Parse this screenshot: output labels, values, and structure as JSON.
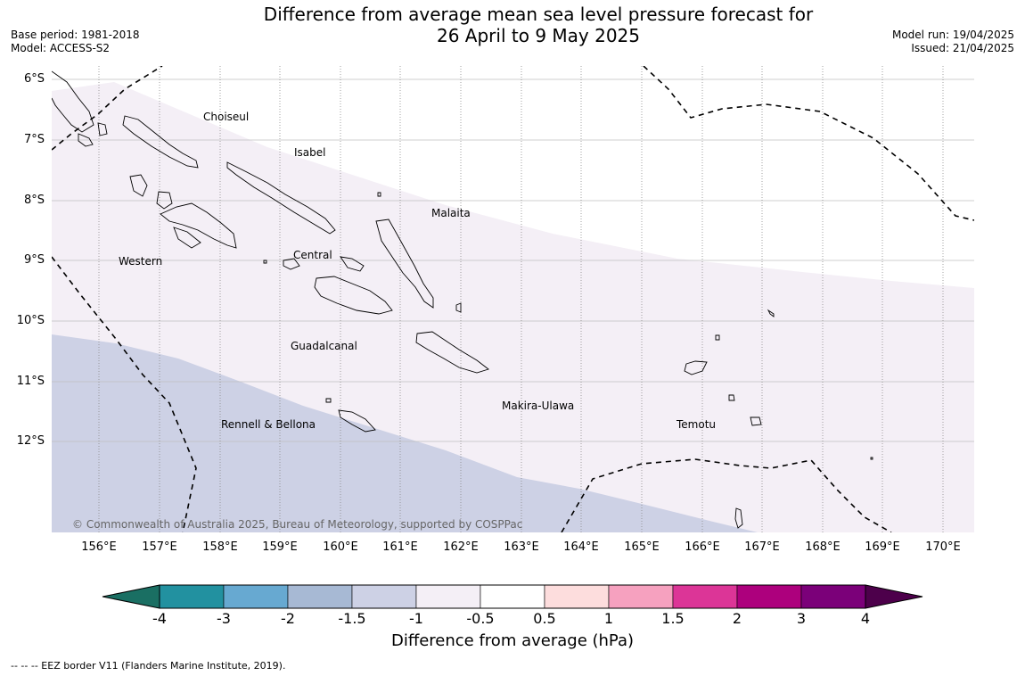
{
  "title_line1": "Difference from average mean sea level pressure forecast for",
  "title_line2": "26 April to 9 May 2025",
  "base_period": "Base period: 1981-2018",
  "model": "Model: ACCESS-S2",
  "model_run": "Model run: 19/04/2025",
  "issued": "Issued: 21/04/2025",
  "latitudes": [
    "6°S",
    "7°S",
    "8°S",
    "9°S",
    "10°S",
    "11°S",
    "12°S"
  ],
  "longitudes": [
    "156°E",
    "157°E",
    "158°E",
    "159°E",
    "160°E",
    "161°E",
    "162°E",
    "163°E",
    "164°E",
    "165°E",
    "166°E",
    "167°E",
    "168°E",
    "169°E",
    "170°E"
  ],
  "regions": [
    "Choiseul",
    "Isabel",
    "Malaita",
    "Western",
    "Central",
    "Guadalcanal",
    "Makira-Ulawa",
    "Rennell & Bellona",
    "Temotu"
  ],
  "copyright": "© Commonwealth of Australia 2025, Bureau of Meteorology, supported by COSPPac",
  "colorbar": {
    "ticks": [
      "-4",
      "-3",
      "-2",
      "-1.5",
      "-1",
      "-0.5",
      "0.5",
      "1",
      "1.5",
      "2",
      "3",
      "4"
    ],
    "colors": [
      "#1a6f63",
      "#2291a0",
      "#67a9d1",
      "#a7b9d4",
      "#cdd1e5",
      "#f4eff6",
      "#ffffff",
      "#fddddd",
      "#f6a1bf",
      "#dc3597",
      "#ad007d",
      "#7b0079",
      "#4d004b"
    ],
    "title": "Difference from average (hPa)"
  },
  "shading": {
    "lower_band_color": "#cdd1e5",
    "middle_band_color": "#f4eff6"
  },
  "footnote": "--  --  -- EEZ border V11 (Flanders Marine Institute, 2019)."
}
